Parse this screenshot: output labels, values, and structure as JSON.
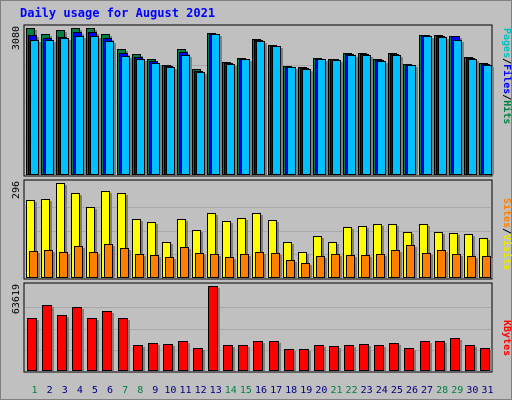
{
  "chart_data": {
    "type": "bar",
    "title": "Daily usage for August 2021",
    "days": [
      "1",
      "2",
      "3",
      "4",
      "5",
      "6",
      "7",
      "8",
      "9",
      "10",
      "11",
      "12",
      "13",
      "14",
      "15",
      "16",
      "17",
      "18",
      "19",
      "20",
      "21",
      "22",
      "23",
      "24",
      "25",
      "26",
      "27",
      "28",
      "29",
      "30",
      "31"
    ],
    "weekend_days": [
      "1",
      "7",
      "8",
      "14",
      "15",
      "21",
      "22",
      "28",
      "29"
    ],
    "panels": [
      {
        "name": "pages-files-hits",
        "ymax_label": "3080",
        "ymax": 3080,
        "series": [
          {
            "name": "Hits",
            "color": "#008040",
            "values": [
              3080,
              2950,
              3030,
              3080,
              3080,
              2960,
              2630,
              2530,
              2420,
              2300,
              2640,
              2230,
              2970,
              2360,
              2450,
              2840,
              2730,
              2280,
              2260,
              2460,
              2440,
              2550,
              2550,
              2430,
              2550,
              2320,
              2940,
              2930,
              2910,
              2470,
              2340
            ]
          },
          {
            "name": "Files",
            "color": "#0000ff",
            "values": [
              2930,
              2870,
              2900,
              2990,
              2990,
              2880,
              2560,
              2480,
              2390,
              2290,
              2570,
              2180,
              2960,
              2340,
              2430,
              2820,
              2710,
              2270,
              2250,
              2440,
              2420,
              2530,
              2530,
              2400,
              2530,
              2310,
              2930,
              2920,
              2920,
              2460,
              2330
            ]
          },
          {
            "name": "Pages",
            "color": "#00c0ff",
            "values": [
              2830,
              2830,
              2870,
              2910,
              2920,
              2810,
              2500,
              2420,
              2340,
              2260,
              2510,
              2160,
              2960,
              2330,
              2420,
              2810,
              2700,
              2260,
              2230,
              2420,
              2400,
              2520,
              2520,
              2380,
              2520,
              2300,
              2920,
              2900,
              2820,
              2430,
              2300
            ]
          }
        ]
      },
      {
        "name": "sites-visits",
        "ymax_label": "296",
        "ymax": 296,
        "series": [
          {
            "name": "Visits",
            "color": "#ffff00",
            "values": [
              242,
              246,
              296,
              266,
              220,
              272,
              266,
              184,
              174,
              112,
              184,
              148,
              204,
              178,
              188,
              204,
              182,
              112,
              80,
              132,
              112,
              160,
              162,
              168,
              168,
              142,
              168,
              142,
              140,
              138,
              124
            ]
          },
          {
            "name": "Sites",
            "color": "#ff8000",
            "values": [
              84,
              86,
              80,
              100,
              82,
              106,
              92,
              74,
              72,
              66,
              96,
              78,
              74,
              66,
              76,
              80,
              78,
              56,
              48,
              70,
              74,
              72,
              72,
              76,
              86,
              104,
              78,
              86,
              74,
              68,
              70
            ]
          }
        ]
      },
      {
        "name": "kbytes",
        "ymax_label": "63619",
        "ymax": 63619,
        "series": [
          {
            "name": "KBytes",
            "color": "#ff0000",
            "values": [
              39500,
              49100,
              41700,
              48100,
              39500,
              45100,
              39500,
              19700,
              20900,
              20100,
              22700,
              16900,
              63619,
              19300,
              19300,
              22700,
              22100,
              16700,
              16700,
              19300,
              18700,
              19700,
              20100,
              19700,
              20900,
              16900,
              22700,
              22300,
              24500,
              19300,
              17100
            ]
          }
        ]
      }
    ],
    "legend_vertical": [
      {
        "text": "Pages",
        "color": "#00c0c0"
      },
      {
        "text": "/",
        "color": "#000000"
      },
      {
        "text": "Files",
        "color": "#0000ff"
      },
      {
        "text": "/",
        "color": "#000000"
      },
      {
        "text": "Hits",
        "color": "#008040"
      },
      {
        "text": "Sites",
        "color": "#ff8000"
      },
      {
        "text": "/",
        "color": "#000000"
      },
      {
        "text": "Visits",
        "color": "#e8e800"
      },
      {
        "text": "KBytes",
        "color": "#ff0000"
      }
    ],
    "weekday_label_color": "#000080",
    "weekend_label_color": "#008040"
  }
}
